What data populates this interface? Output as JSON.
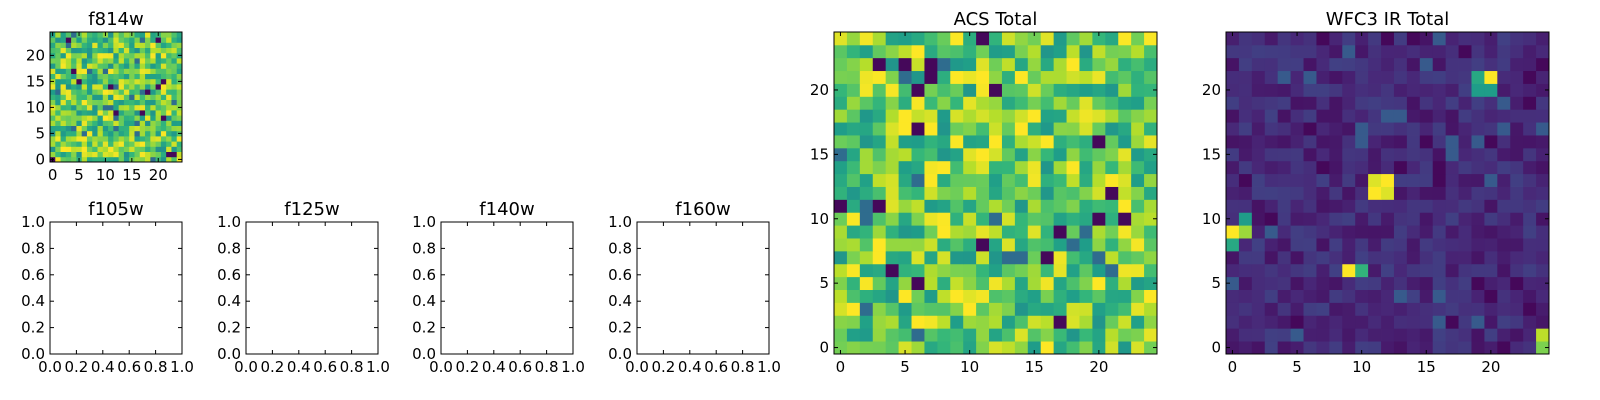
{
  "chart_data": [
    {
      "id": "f814w",
      "type": "heatmap",
      "title": "f814w",
      "xlabel": "",
      "ylabel": "",
      "xlim": [
        -0.5,
        24.5
      ],
      "ylim": [
        -0.5,
        24.5
      ],
      "xticks": [
        0,
        5,
        10,
        15,
        20
      ],
      "yticks": [
        0,
        5,
        10,
        15,
        20
      ],
      "grid": [
        25,
        25
      ],
      "colormap": "viridis",
      "data_character": "dense random values, mostly high (green-yellow) with scattered dark outliers",
      "seed": 7,
      "bias": 0.68
    },
    {
      "id": "f105w",
      "type": "empty",
      "title": "f105w",
      "xlim": [
        0,
        1
      ],
      "ylim": [
        0,
        1
      ],
      "xticks": [
        "0.0",
        "0.2",
        "0.4",
        "0.6",
        "0.8",
        "1.0"
      ],
      "yticks": [
        "0.0",
        "0.2",
        "0.4",
        "0.6",
        "0.8",
        "1.0"
      ]
    },
    {
      "id": "f125w",
      "type": "empty",
      "title": "f125w",
      "xlim": [
        0,
        1
      ],
      "ylim": [
        0,
        1
      ],
      "xticks": [
        "0.0",
        "0.2",
        "0.4",
        "0.6",
        "0.8",
        "1.0"
      ],
      "yticks": [
        "0.0",
        "0.2",
        "0.4",
        "0.6",
        "0.8",
        "1.0"
      ]
    },
    {
      "id": "f140w",
      "type": "empty",
      "title": "f140w",
      "xlim": [
        0,
        1
      ],
      "ylim": [
        0,
        1
      ],
      "xticks": [
        "0.0",
        "0.2",
        "0.4",
        "0.6",
        "0.8",
        "1.0"
      ],
      "yticks": [
        "0.0",
        "0.2",
        "0.4",
        "0.6",
        "0.8",
        "1.0"
      ]
    },
    {
      "id": "f160w",
      "type": "empty",
      "title": "f160w",
      "xlim": [
        0,
        1
      ],
      "ylim": [
        0,
        1
      ],
      "xticks": [
        "0.0",
        "0.2",
        "0.4",
        "0.6",
        "0.8",
        "1.0"
      ],
      "yticks": [
        "0.0",
        "0.2",
        "0.4",
        "0.6",
        "0.8",
        "1.0"
      ]
    },
    {
      "id": "acs_total",
      "type": "heatmap",
      "title": "ACS Total",
      "xlim": [
        -0.5,
        24.5
      ],
      "ylim": [
        -0.5,
        24.5
      ],
      "xticks": [
        0,
        5,
        10,
        15,
        20
      ],
      "yticks": [
        0,
        5,
        10,
        15,
        20
      ],
      "grid": [
        25,
        25
      ],
      "colormap": "viridis",
      "data_character": "dense random values, mostly green-yellow with a few dark purple pixels",
      "seed": 11,
      "bias": 0.7
    },
    {
      "id": "wfc3_ir_total",
      "type": "heatmap",
      "title": "WFC3 IR Total",
      "xlim": [
        -0.5,
        24.5
      ],
      "ylim": [
        -0.5,
        24.5
      ],
      "xticks": [
        0,
        5,
        10,
        15,
        20
      ],
      "yticks": [
        0,
        5,
        10,
        15,
        20
      ],
      "grid": [
        25,
        25
      ],
      "colormap": "viridis",
      "data_character": "low dark-blue background with a few bright compact sources",
      "seed": 23,
      "bias": 0.12,
      "bright_sources": [
        {
          "x": 20,
          "y": 21,
          "value": 1.0
        },
        {
          "x": 19,
          "y": 21,
          "value": 0.6
        },
        {
          "x": 19,
          "y": 20,
          "value": 0.55
        },
        {
          "x": 20,
          "y": 20,
          "value": 0.55
        },
        {
          "x": 11,
          "y": 13,
          "value": 0.95
        },
        {
          "x": 12,
          "y": 13,
          "value": 1.0
        },
        {
          "x": 11,
          "y": 12,
          "value": 1.0
        },
        {
          "x": 12,
          "y": 12,
          "value": 0.95
        },
        {
          "x": 0,
          "y": 9,
          "value": 1.0
        },
        {
          "x": 1,
          "y": 9,
          "value": 0.85
        },
        {
          "x": 1,
          "y": 10,
          "value": 0.55
        },
        {
          "x": 0,
          "y": 8,
          "value": 0.6
        },
        {
          "x": 9,
          "y": 6,
          "value": 1.0
        },
        {
          "x": 10,
          "y": 6,
          "value": 0.65
        },
        {
          "x": 24,
          "y": 1,
          "value": 0.9
        },
        {
          "x": 24,
          "y": 0,
          "value": 0.8
        }
      ]
    }
  ]
}
